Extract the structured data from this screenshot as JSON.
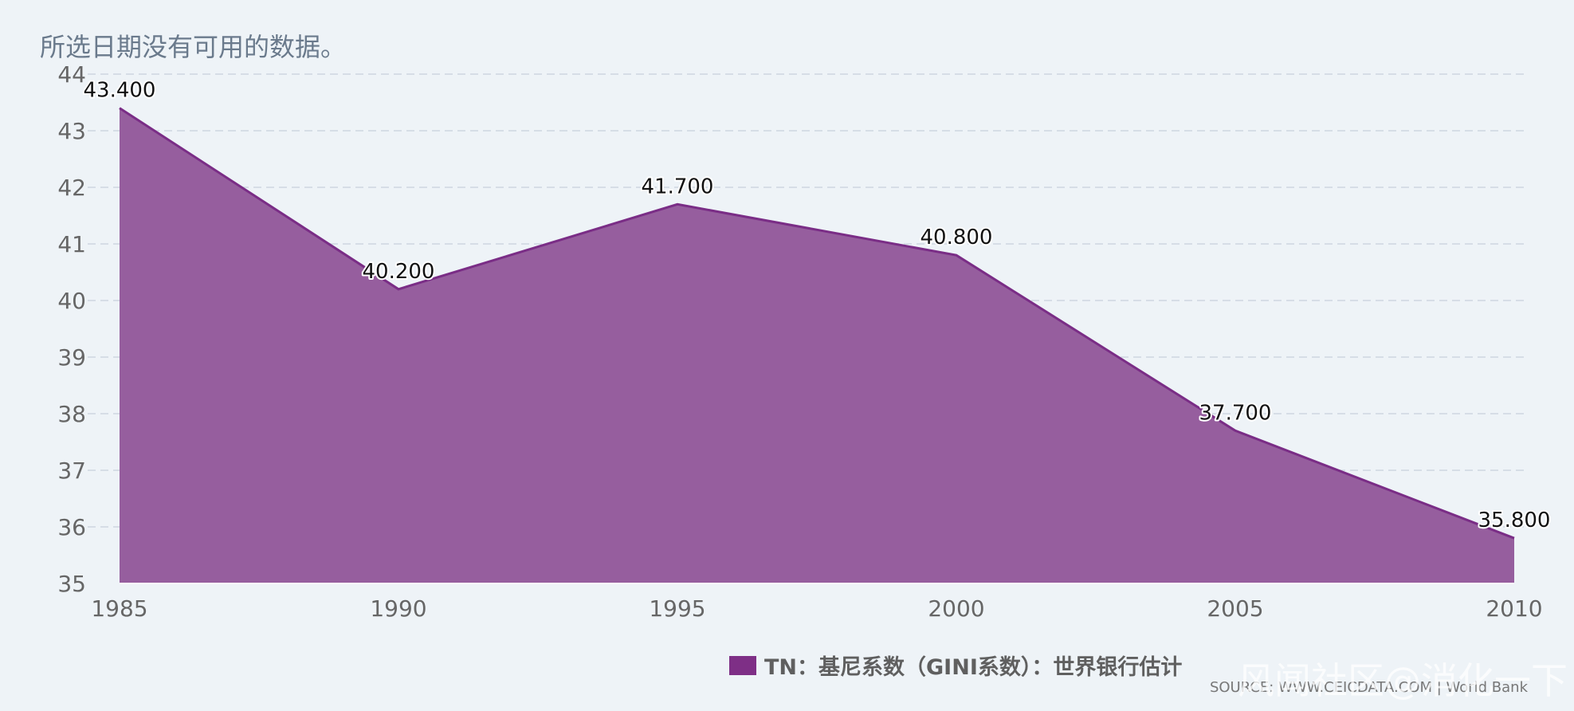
{
  "note": "所选日期没有可用的数据。",
  "source": "SOURCE: WWW.CEICDATA.COM | World Bank",
  "watermark": "风闻社区@消化一下",
  "colors": {
    "area": "#965e9e",
    "line": "#7a2d86",
    "legend_swatch": "#7e2f86",
    "grid": "#d6dde6",
    "axis_text": "#666666"
  },
  "chart_data": {
    "type": "area",
    "x": [
      1985,
      1990,
      1995,
      2000,
      2005,
      2010
    ],
    "x_tick_labels": [
      "1985",
      "1990",
      "1995",
      "2000",
      "2005",
      "2010"
    ],
    "series": [
      {
        "name": "TN：基尼系数（GINI系数）：世界银行估计",
        "values": [
          43.4,
          40.2,
          41.7,
          40.8,
          37.7,
          35.8
        ],
        "labels": [
          "43.400",
          "40.200",
          "41.700",
          "40.800",
          "37.700",
          "35.800"
        ]
      }
    ],
    "y_ticks": [
      35,
      36,
      37,
      38,
      39,
      40,
      41,
      42,
      43,
      44
    ],
    "ylim": [
      35,
      44
    ],
    "xlim": [
      1985,
      2010
    ],
    "grid": true,
    "legend_position": "bottom-right"
  }
}
